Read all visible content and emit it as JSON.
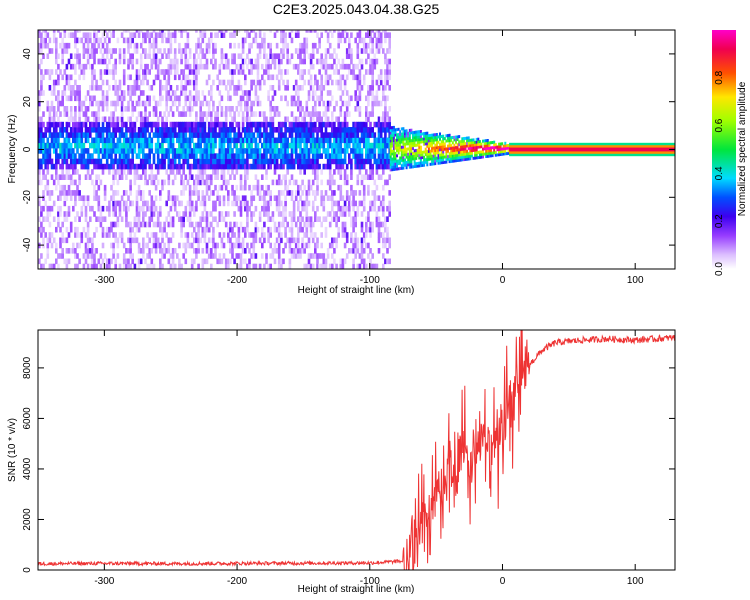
{
  "title": "C2E3.2025.043.04.38.G25",
  "chart_data": [
    {
      "type": "heatmap",
      "xlabel": "Height of straight line (km)",
      "ylabel": "Frequency (Hz)",
      "xlim": [
        -350,
        130
      ],
      "ylim": [
        -50,
        50
      ],
      "xticks": [
        -300,
        -200,
        -100,
        0,
        100
      ],
      "yticks": [
        -40,
        -20,
        0,
        20,
        40
      ],
      "noise_region_x": [
        -350,
        -85
      ],
      "noise_band_hz": [
        -10,
        10
      ],
      "transition_region_x": [
        -85,
        5
      ],
      "carrier_region_x": [
        5,
        130
      ],
      "carrier_frequency_hz": 0,
      "colorbar": {
        "label": "Normalized spectral amplitude",
        "range": [
          0,
          1
        ],
        "ticks": [
          0.0,
          0.2,
          0.4,
          0.6,
          0.8
        ],
        "tick_labels": [
          "0.0",
          "0.2",
          "0.4",
          "0.6",
          "0.8"
        ]
      }
    },
    {
      "type": "line",
      "xlabel": "Height of straight line (km)",
      "ylabel": "SNR (10 * v/v)",
      "xlim": [
        -350,
        130
      ],
      "ylim": [
        0,
        9500
      ],
      "xticks": [
        -300,
        -200,
        -100,
        0,
        100
      ],
      "yticks": [
        0,
        2000,
        4000,
        6000,
        8000
      ],
      "series": [
        {
          "name": "SNR",
          "color": "#ee3333",
          "x": [
            -350,
            -300,
            -250,
            -200,
            -150,
            -100,
            -75,
            -65,
            -60,
            -55,
            -50,
            -45,
            -40,
            -35,
            -30,
            -25,
            -20,
            -15,
            -10,
            -5,
            0,
            5,
            10,
            15,
            20,
            30,
            40,
            60,
            80,
            100,
            130
          ],
          "y": [
            250,
            260,
            250,
            260,
            270,
            280,
            350,
            1200,
            2200,
            1500,
            3800,
            2500,
            4500,
            3500,
            5000,
            3800,
            4500,
            5200,
            4500,
            5000,
            5800,
            6500,
            7000,
            7800,
            8100,
            8700,
            9000,
            9100,
            9150,
            9100,
            9200
          ]
        }
      ]
    }
  ]
}
